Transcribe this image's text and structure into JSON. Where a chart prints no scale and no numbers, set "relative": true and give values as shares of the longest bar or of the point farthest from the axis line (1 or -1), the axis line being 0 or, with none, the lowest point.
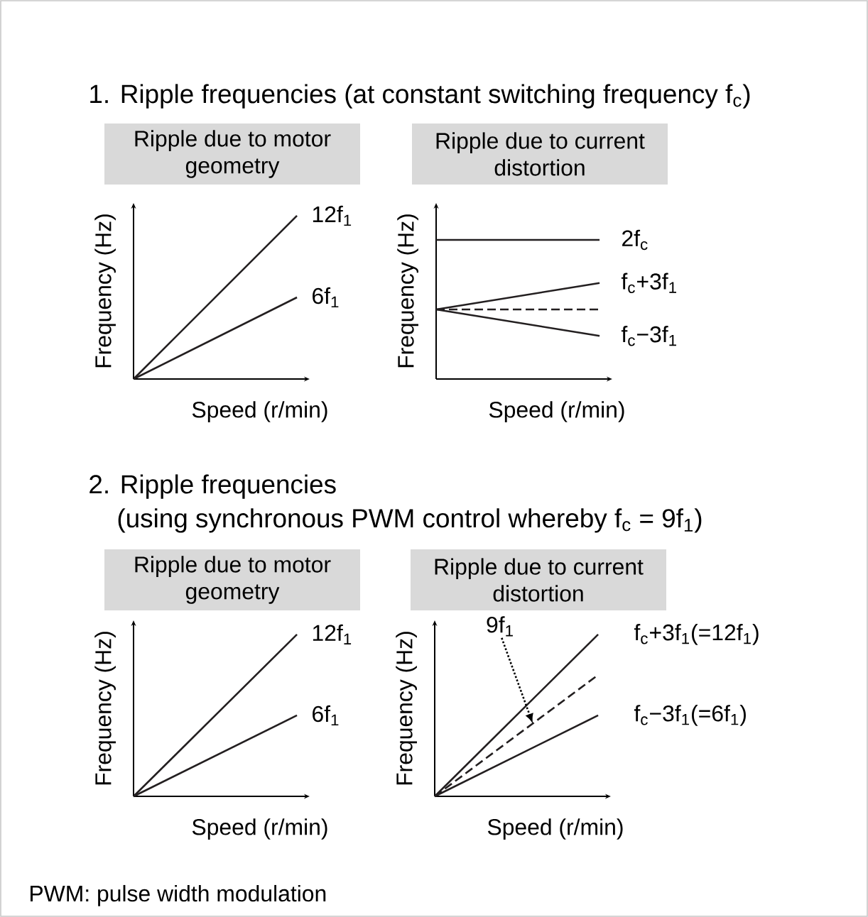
{
  "chart_data": [
    {
      "type": "line",
      "title": "1. Ripple frequencies (at constant switching frequency f$_{c}$)",
      "subtitle": "Ripple due to motor geometry",
      "xlabel": "Speed (r/min)",
      "ylabel": "Frequency (Hz)",
      "relative": true,
      "categories": [
        null,
        null
      ],
      "series": [
        {
          "name": "12f$_{1}$",
          "color": "#231f20",
          "values": [
            0,
            1
          ]
        },
        {
          "name": "6f$_{1}$",
          "color": "#231f20",
          "values": [
            0,
            0.5
          ]
        }
      ]
    },
    {
      "type": "line",
      "subtitle": "Ripple due to current distortion",
      "xlabel": "Speed (r/min)",
      "ylabel": "Frequency (Hz)",
      "relative": true,
      "categories": [
        null,
        null
      ],
      "series": [
        {
          "name": "2f$_{c}$",
          "color": "#231f20",
          "values": [
            1,
            1
          ]
        },
        {
          "name": "f$_{c}$+3f$_{1}$",
          "color": "#231f20",
          "values": [
            0.5,
            0.69
          ]
        },
        {
          "color": "#231f20",
          "values": [
            0.5,
            0.5
          ],
          "line_style": "dashed"
        },
        {
          "name": "f$_{c}$−3f$_{1}$",
          "color": "#231f20",
          "values": [
            0.5,
            0.31
          ]
        }
      ]
    },
    {
      "type": "line",
      "title": "2. Ripple frequencies (using synchronous PWM control whereby f$_{c}$ = 9f$_{1}$)",
      "subtitle": "Ripple due to motor geometry",
      "xlabel": "Speed (r/min)",
      "ylabel": "Frequency (Hz)",
      "relative": true,
      "categories": [
        null,
        null
      ],
      "series": [
        {
          "name": "12f$_{1}$",
          "color": "#231f20",
          "values": [
            0,
            1
          ]
        },
        {
          "name": "6f$_{1}$",
          "color": "#231f20",
          "values": [
            0,
            0.5
          ]
        }
      ]
    },
    {
      "type": "line",
      "subtitle": "Ripple due to current distortion",
      "xlabel": "Speed (r/min)",
      "ylabel": "Frequency (Hz)",
      "relative": true,
      "categories": [
        null,
        null
      ],
      "annotations": [
        "PWM: pulse width modulation"
      ],
      "series": [
        {
          "name": "f$_{c}$+3f$_{1}$(=12f$_{1}$)",
          "color": "#231f20",
          "values": [
            0,
            1
          ]
        },
        {
          "name": "9f$_{1}$",
          "color": "#231f20",
          "values": [
            0,
            0.75
          ],
          "line_style": "dashed"
        },
        {
          "name": "f$_{c}$−3f$_{1}$(=6f$_{1}$)",
          "color": "#231f20",
          "values": [
            0,
            0.5
          ]
        }
      ]
    }
  ]
}
